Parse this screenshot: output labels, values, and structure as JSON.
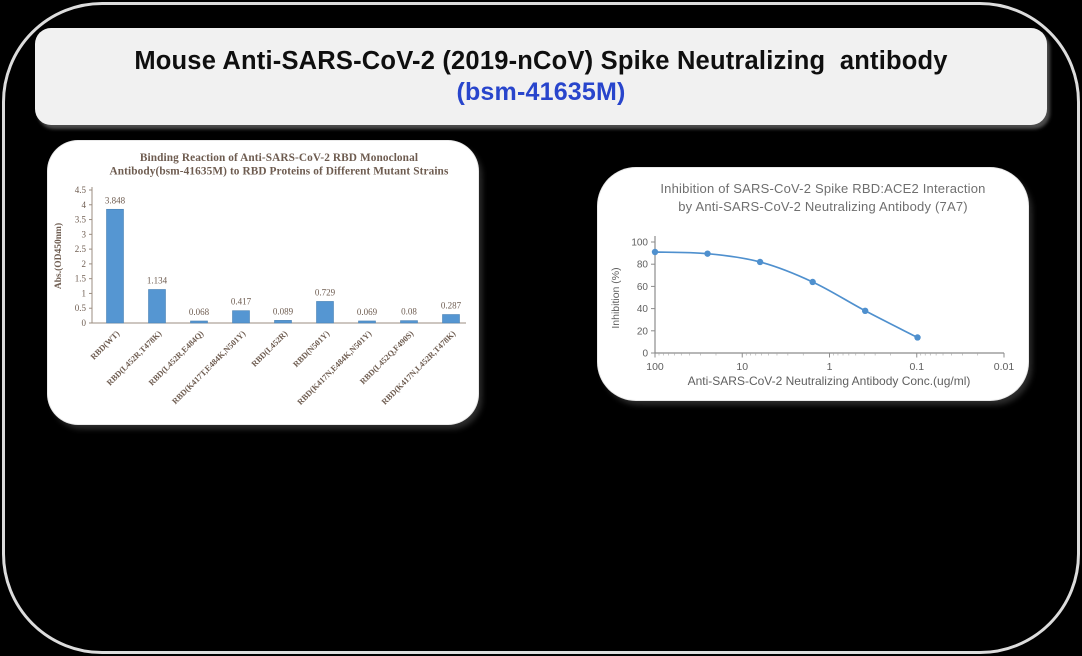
{
  "banner": {
    "title_line1": "Mouse Anti-SARS-CoV-2 (2019-nCoV) Spike Neutralizing  antibody",
    "catalog_code": "(bsm-41635M)",
    "title_color": "#0f0f0f",
    "code_color": "#2845cc"
  },
  "chart_data": [
    {
      "type": "bar",
      "title": "Binding Reaction of Anti-SARS-CoV-2 RBD Monoclonal Antibody(bsm-41635M) to RBD Proteins of Different Mutant Strains",
      "title_lines": [
        "Binding Reaction of Anti-SARS-CoV-2 RBD Monoclonal",
        "Antibody(bsm-41635M) to RBD Proteins of Different Mutant Strains"
      ],
      "categories": [
        "RBD(WT)",
        "RBD(L452R,T478K)",
        "RBD(L452R,E484Q)",
        "RBD(K417T,E484K,N501Y)",
        "RBD(L452R)",
        "RBD(N501Y)",
        "RBD(K417N,E484K,N501Y)",
        "RBD(L452Q,F490S)",
        "RBD(K417N,L452R,T478K)"
      ],
      "values": [
        3.848,
        1.134,
        0.068,
        0.417,
        0.089,
        0.729,
        0.069,
        0.08,
        0.287
      ],
      "xlabel": "",
      "ylabel": "Abs.(OD450nm)",
      "ylim": [
        0,
        4.5
      ],
      "ytick_step": 0.5,
      "grid": false,
      "legend": null,
      "bar_color": "#5596d2",
      "bar_edge_color": "#4a82b4",
      "axis_color": "#9b8d80",
      "text_color": "#6e5c50"
    },
    {
      "type": "line",
      "title": "Inhibition of SARS-CoV-2 Spike RBD:ACE2 Interaction by Anti-SARS-CoV-2 Neutralizing Antibody (7A7)",
      "title_lines": [
        "Inhibition of SARS-CoV-2 Spike RBD:ACE2 Interaction",
        "by Anti-SARS-CoV-2 Neutralizing Antibody (7A7)"
      ],
      "x": [
        100,
        25,
        6.25,
        1.56,
        0.39,
        0.098
      ],
      "y": [
        91,
        89.5,
        82,
        64,
        38,
        14
      ],
      "xlabel": "Anti-SARS-CoV-2 Neutralizing Antibody Conc.(ug/ml)",
      "ylabel": "Inhibition (%)",
      "x_scale": "log-reversed",
      "xlim": [
        100,
        0.01
      ],
      "xticks": [
        100,
        10,
        1,
        0.1,
        0.01
      ],
      "ylim": [
        0,
        100
      ],
      "yticks": [
        0,
        20,
        40,
        60,
        80,
        100
      ],
      "grid": false,
      "legend": null,
      "line_color": "#4f90ce",
      "marker": "circle",
      "axis_color": "#8c8c8c",
      "text_color": "#6f6f6f",
      "tick_text_color": "#5f5f5f"
    }
  ]
}
